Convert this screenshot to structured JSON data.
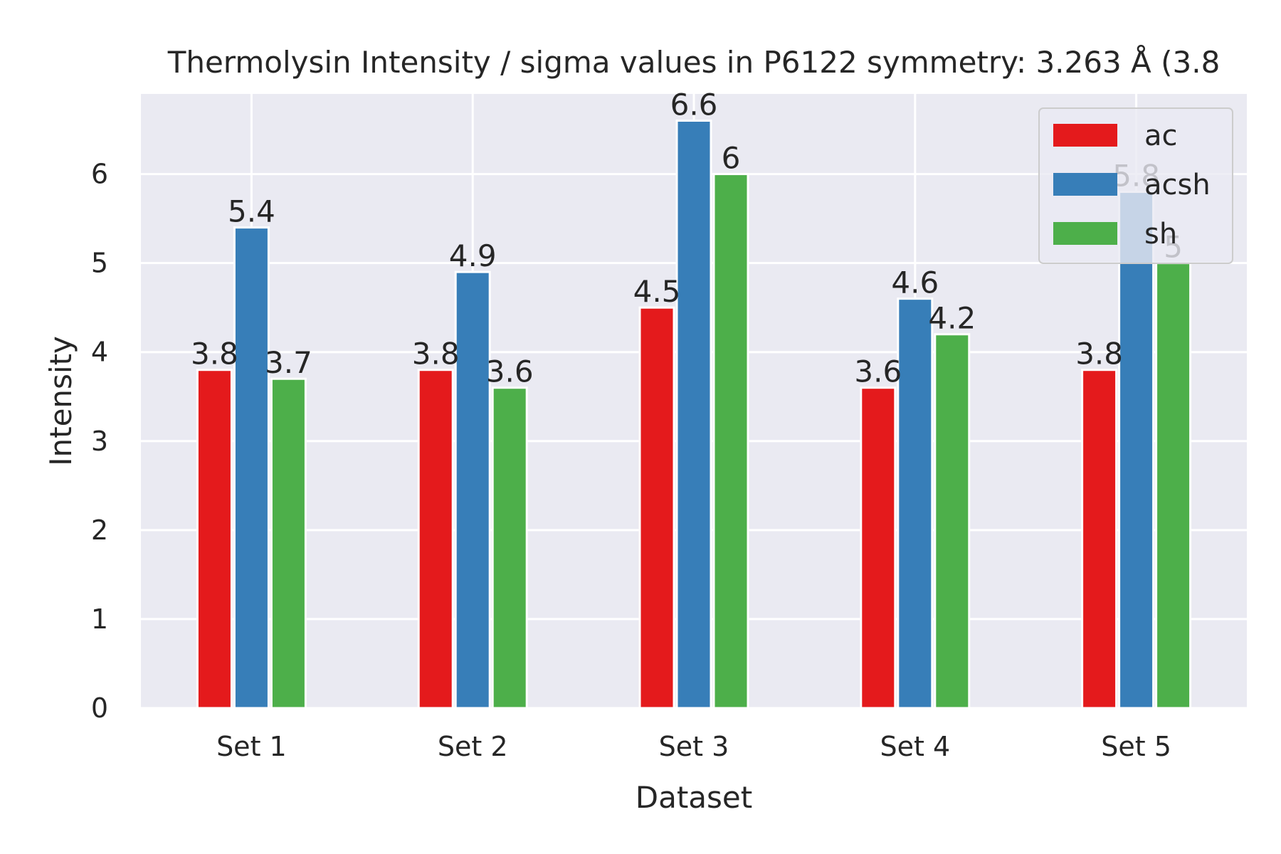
{
  "chart_data": {
    "type": "bar",
    "title": "Thermolysin Intensity / sigma values in P6122 symmetry: 3.263 Å (3.8",
    "xlabel": "Dataset",
    "ylabel": "Intensity",
    "categories": [
      "Set 1",
      "Set 2",
      "Set 3",
      "Set 4",
      "Set 5"
    ],
    "series": [
      {
        "name": "ac",
        "color": "#e41a1c",
        "values": [
          3.8,
          3.8,
          4.5,
          3.6,
          3.8
        ]
      },
      {
        "name": "acsh",
        "color": "#377eb8",
        "values": [
          5.4,
          4.9,
          6.6,
          4.6,
          5.8
        ]
      },
      {
        "name": "sh",
        "color": "#4daf4a",
        "values": [
          3.7,
          3.6,
          6,
          4.2,
          5
        ]
      }
    ],
    "data_labels": [
      [
        "3.8",
        "3.8",
        "4.5",
        "3.6",
        "3.8"
      ],
      [
        "5.4",
        "4.9",
        "6.6",
        "4.6",
        "5.8"
      ],
      [
        "3.7",
        "3.6",
        "6",
        "4.2",
        "5"
      ]
    ],
    "yticks": [
      "0",
      "1",
      "2",
      "3",
      "4",
      "5",
      "6"
    ],
    "ylim": [
      0,
      6.9
    ],
    "grid": true,
    "legend_position": "top-right",
    "plot_background": "#eaeaf2"
  }
}
